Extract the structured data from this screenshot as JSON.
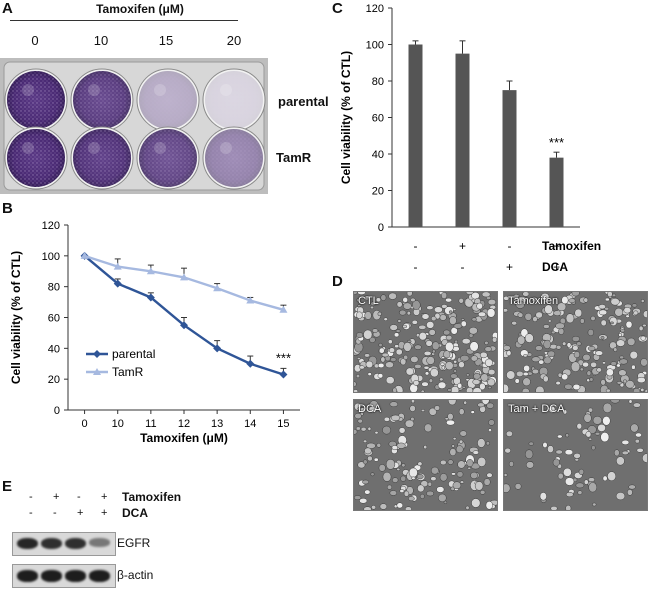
{
  "panel_a": {
    "letter": "A",
    "title": "Tamoxifen (μM)",
    "concentrations": [
      "0",
      "10",
      "15",
      "20"
    ],
    "rows": [
      "parental",
      "TamR"
    ],
    "well_stain": [
      [
        1.0,
        0.9,
        0.35,
        0.15
      ],
      [
        1.0,
        0.95,
        0.85,
        0.55
      ]
    ]
  },
  "panel_b": {
    "letter": "B",
    "significance": "***"
  },
  "panel_c": {
    "letter": "C",
    "significance": "***",
    "conditions": [
      {
        "tamoxifen": "-",
        "dca": "-"
      },
      {
        "tamoxifen": "+",
        "dca": "-"
      },
      {
        "tamoxifen": "-",
        "dca": "+"
      },
      {
        "tamoxifen": "+",
        "dca": "+"
      }
    ],
    "row_labels": [
      "Tamoxifen",
      "DCA"
    ]
  },
  "panel_d": {
    "letter": "D",
    "images": [
      "CTL",
      "Tamoxifen",
      "DCA",
      "Tam + DCA"
    ],
    "cell_density": [
      1.0,
      0.8,
      0.6,
      0.3
    ]
  },
  "panel_e": {
    "letter": "E",
    "conditions": [
      {
        "tamoxifen": "-",
        "dca": "-"
      },
      {
        "tamoxifen": "+",
        "dca": "-"
      },
      {
        "tamoxifen": "-",
        "dca": "+"
      },
      {
        "tamoxifen": "+",
        "dca": "+"
      }
    ],
    "row_labels": [
      "Tamoxifen",
      "DCA"
    ],
    "blots": [
      {
        "label": "EGFR",
        "intensity": [
          0.9,
          0.85,
          0.85,
          0.45
        ]
      },
      {
        "label": "β-actin",
        "intensity": [
          0.95,
          0.95,
          0.95,
          0.95
        ]
      }
    ]
  },
  "chart_data": [
    {
      "type": "line",
      "panel": "B",
      "xlabel": "Tamoxifen (μM)",
      "ylabel": "Cell viability (% of CTL)",
      "categories": [
        "0",
        "10",
        "11",
        "12",
        "13",
        "14",
        "15"
      ],
      "ylim": [
        0,
        120
      ],
      "yticks": [
        0,
        20,
        40,
        60,
        80,
        100,
        120
      ],
      "legend_position": "bottom-left",
      "series": [
        {
          "name": "parental",
          "color": "#2f5597",
          "marker": "diamond",
          "values": [
            100,
            82,
            73,
            55,
            40,
            30,
            23
          ],
          "errors": [
            0,
            3,
            3,
            5,
            5,
            5,
            4
          ]
        },
        {
          "name": "TamR",
          "color": "#a6b9e0",
          "marker": "triangle",
          "values": [
            100,
            93,
            90,
            86,
            79,
            71,
            65
          ],
          "errors": [
            0,
            5,
            4,
            6,
            3,
            2,
            3
          ]
        }
      ]
    },
    {
      "type": "bar",
      "panel": "C",
      "xlabel": "",
      "ylabel": "Cell viability (% of CTL)",
      "categories": [
        "-/-",
        "+/-",
        "-/+",
        "+/+"
      ],
      "ylim": [
        0,
        120
      ],
      "yticks": [
        0,
        20,
        40,
        60,
        80,
        100,
        120
      ],
      "values": [
        100,
        95,
        75,
        38
      ],
      "errors": [
        2,
        7,
        5,
        3
      ],
      "color": "#555555"
    }
  ]
}
